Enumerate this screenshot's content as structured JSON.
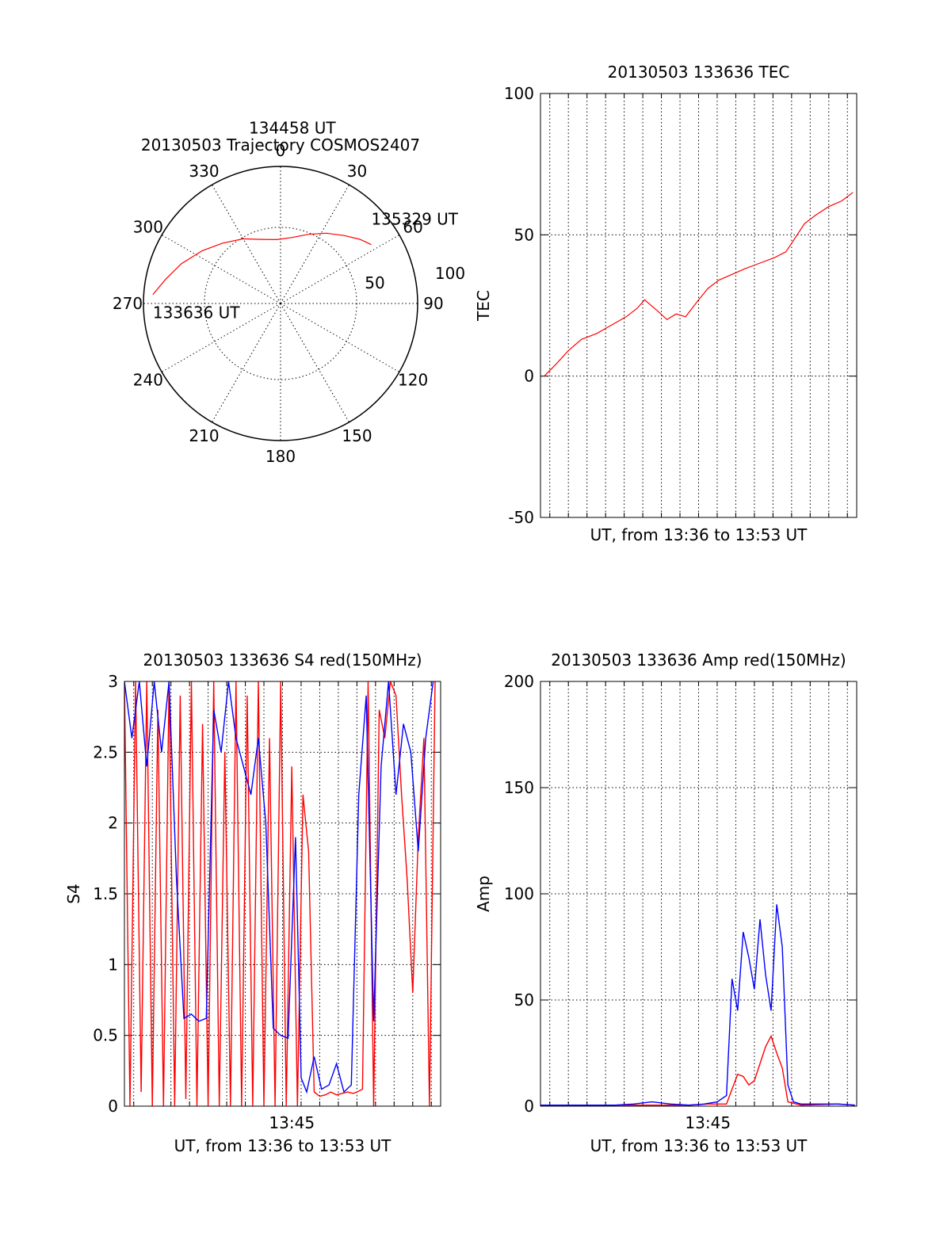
{
  "chart_data": [
    {
      "id": "polar",
      "type": "scatter",
      "title": "20130503 Trajectory COSMOS2407",
      "azimuth_labels": [
        "0",
        "30",
        "60",
        "90",
        "120",
        "150",
        "180",
        "210",
        "240",
        "270",
        "300",
        "330"
      ],
      "radial_labels": [
        "50",
        "100"
      ],
      "series": [
        {
          "color": "#ff0000",
          "points": [
            [
              274,
              84
            ],
            [
              282,
              77
            ],
            [
              292,
              70
            ],
            [
              304,
              62
            ],
            [
              316,
              55
            ],
            [
              330,
              49
            ],
            [
              343,
              44
            ],
            [
              357,
              42
            ],
            [
              10,
              44
            ],
            [
              22,
              49
            ],
            [
              33,
              55
            ],
            [
              43,
              61
            ],
            [
              51,
              67
            ],
            [
              57,
              71
            ]
          ]
        }
      ],
      "annotations": [
        {
          "label": "133636 UT",
          "az": 274,
          "zen": 84
        },
        {
          "label": "134458 UT",
          "az": 0,
          "zen": 70
        },
        {
          "label": "135329 UT",
          "az": 57,
          "zen": 71
        }
      ]
    },
    {
      "id": "tec",
      "type": "line",
      "title": "20130503 133636 TEC",
      "xlabel": "UT, from 13:36 to 13:53 UT",
      "ylabel": "TEC",
      "ylim": [
        -50,
        100
      ],
      "yticks": [
        "-50",
        "0",
        "50",
        "100"
      ],
      "xlim": [
        0,
        17
      ],
      "x_unit": "minutes after 13:36",
      "series": [
        {
          "color": "#ff0000",
          "x": [
            0.2,
            0.8,
            1.5,
            2.2,
            3.0,
            3.8,
            4.6,
            5.2,
            5.6,
            6.3,
            6.8,
            7.3,
            7.8,
            8.5,
            9.0,
            9.6,
            10.3,
            11.0,
            11.8,
            12.6,
            13.2,
            13.6,
            14.2,
            14.8,
            15.5,
            16.2,
            16.8
          ],
          "y": [
            0,
            4,
            9,
            13,
            15,
            18,
            21,
            24,
            27,
            23,
            20,
            22,
            21,
            27,
            31,
            34,
            36,
            38,
            40,
            42,
            44,
            48,
            54,
            57,
            60,
            62,
            65
          ]
        }
      ]
    },
    {
      "id": "s4",
      "type": "line",
      "title": "20130503 133636 S4 red(150MHz)",
      "xlabel": "UT, from 13:36 to 13:53 UT",
      "ylabel": "S4",
      "ylim": [
        0,
        3
      ],
      "yticks": [
        "0",
        "0.5",
        "1",
        "1.5",
        "2",
        "2.5",
        "3"
      ],
      "xlim": [
        0,
        17
      ],
      "xticks": [
        {
          "value": 9,
          "label": "13:45"
        }
      ],
      "series": [
        {
          "color": "#ff0000",
          "x": [
            0,
            0.3,
            0.6,
            0.9,
            1.2,
            1.5,
            1.8,
            2.1,
            2.4,
            2.7,
            3.0,
            3.3,
            3.6,
            3.9,
            4.2,
            4.5,
            4.8,
            5.1,
            5.4,
            5.7,
            6.0,
            6.3,
            6.6,
            6.9,
            7.2,
            7.5,
            7.8,
            8.1,
            8.4,
            8.7,
            9.0,
            9.3,
            9.6,
            9.9,
            10.2,
            10.5,
            10.8,
            11.1,
            11.4,
            11.7,
            12.0,
            12.3,
            12.5,
            12.8,
            13.1,
            13.4,
            13.7,
            14.0,
            14.3,
            14.6,
            14.9,
            15.2,
            15.5,
            15.8,
            16.1,
            16.4,
            16.7
          ],
          "y": [
            3,
            0,
            3,
            0.1,
            3,
            0,
            2.8,
            0,
            3,
            0,
            2.9,
            0.05,
            3,
            0,
            2.7,
            0,
            3,
            0,
            2.5,
            0,
            3,
            0,
            2.9,
            0,
            3,
            0,
            2.6,
            0,
            3,
            0,
            2.4,
            0,
            2.2,
            1.8,
            0.1,
            0.07,
            0.08,
            0.1,
            0.08,
            0.09,
            0.1,
            0.09,
            0.1,
            0.12,
            3,
            0,
            2.8,
            2.6,
            3,
            2.9,
            2.2,
            1.6,
            0.8,
            1.9,
            2.6,
            0,
            3
          ]
        },
        {
          "color": "#0000ff",
          "x": [
            0,
            0.4,
            0.8,
            1.2,
            1.6,
            2.0,
            2.4,
            2.8,
            3.2,
            3.6,
            4.0,
            4.4,
            4.8,
            5.2,
            5.6,
            6.0,
            6.4,
            6.8,
            7.2,
            7.6,
            8.0,
            8.4,
            8.8,
            9.2,
            9.5,
            9.8,
            10.2,
            10.6,
            11.0,
            11.4,
            11.8,
            12.2,
            12.6,
            13.0,
            13.4,
            13.8,
            14.2,
            14.6,
            15.0,
            15.4,
            15.8,
            16.2,
            16.6
          ],
          "y": [
            3,
            2.6,
            3,
            2.4,
            3,
            2.5,
            3,
            1.6,
            0.62,
            0.65,
            0.6,
            0.62,
            2.8,
            2.5,
            3,
            2.6,
            2.4,
            2.2,
            2.6,
            2.0,
            0.55,
            0.5,
            0.48,
            1.9,
            0.2,
            0.1,
            0.35,
            0.12,
            0.15,
            0.3,
            0.1,
            0.15,
            2.2,
            2.9,
            0.6,
            2.4,
            3,
            2.2,
            2.7,
            2.5,
            1.8,
            2.6,
            3
          ]
        }
      ]
    },
    {
      "id": "amp",
      "type": "line",
      "title": "20130503 133636 Amp red(150MHz)",
      "xlabel": "UT, from 13:36 to 13:53 UT",
      "ylabel": "Amp",
      "ylim": [
        0,
        200
      ],
      "yticks": [
        "0",
        "50",
        "100",
        "150",
        "200"
      ],
      "xlim": [
        0,
        17
      ],
      "xticks": [
        {
          "value": 9,
          "label": "13:45"
        }
      ],
      "series": [
        {
          "color": "#ff0000",
          "x": [
            0,
            2,
            4,
            6,
            8,
            9,
            10,
            10.3,
            10.6,
            10.9,
            11.2,
            11.5,
            11.8,
            12.1,
            12.4,
            12.7,
            13.0,
            13.3,
            14,
            16,
            16.9
          ],
          "y": [
            0.5,
            0.5,
            0.5,
            0.5,
            0.5,
            1,
            1,
            8,
            15,
            14,
            10,
            12,
            20,
            28,
            33,
            25,
            18,
            2,
            0.5,
            1,
            0.5
          ]
        },
        {
          "color": "#0000ff",
          "x": [
            0,
            1,
            2,
            3,
            4,
            5,
            6,
            7,
            8,
            8.8,
            9.5,
            10,
            10.3,
            10.6,
            10.9,
            11.2,
            11.5,
            11.8,
            12.1,
            12.4,
            12.7,
            13.0,
            13.3,
            13.6,
            14,
            15,
            16,
            16.9
          ],
          "y": [
            0.5,
            0.5,
            0.5,
            0.5,
            0.5,
            1,
            2,
            1,
            0.5,
            1,
            2,
            5,
            60,
            45,
            82,
            70,
            55,
            88,
            62,
            45,
            95,
            75,
            10,
            2,
            1,
            1,
            1,
            0.5
          ]
        }
      ]
    }
  ]
}
